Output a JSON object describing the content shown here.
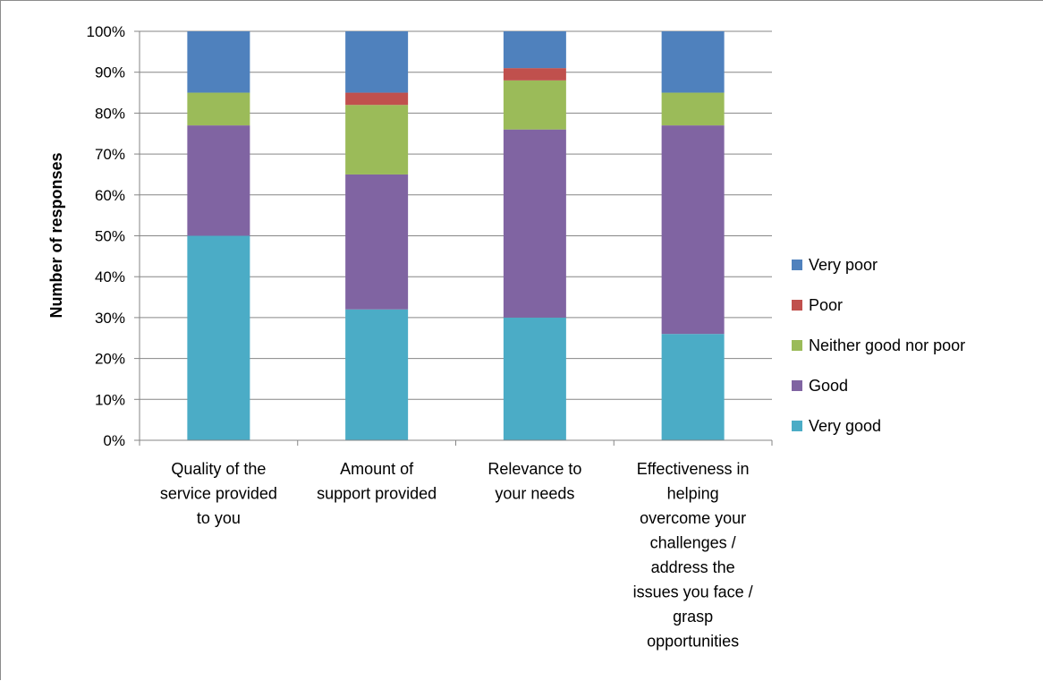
{
  "chart_data": {
    "type": "bar",
    "stacked": true,
    "percent_stacked": true,
    "title": "",
    "xlabel": "",
    "ylabel": "Number of responses",
    "ylim": [
      0,
      100
    ],
    "y_ticks": [
      "0%",
      "10%",
      "20%",
      "30%",
      "40%",
      "50%",
      "60%",
      "70%",
      "80%",
      "90%",
      "100%"
    ],
    "grid": true,
    "legend_position": "right",
    "categories": [
      [
        "Quality of the",
        "service provided",
        "to you"
      ],
      [
        "Amount of",
        "support provided"
      ],
      [
        "Relevance to",
        "your needs"
      ],
      [
        "Effectiveness in",
        "helping",
        "overcome your",
        "challenges /",
        "address the",
        "issues you face /",
        "grasp",
        "opportunities"
      ]
    ],
    "series": [
      {
        "name": "Very good",
        "color": "#4BACC6",
        "values": [
          50,
          32,
          30,
          26
        ]
      },
      {
        "name": "Good",
        "color": "#8064A2",
        "values": [
          27,
          33,
          46,
          51
        ]
      },
      {
        "name": "Neither good nor poor",
        "color": "#9BBB59",
        "values": [
          8,
          17,
          12,
          8
        ]
      },
      {
        "name": "Poor",
        "color": "#C0504D",
        "values": [
          0,
          3,
          3,
          0
        ]
      },
      {
        "name": "Very poor",
        "color": "#4F81BD",
        "values": [
          15,
          15,
          9,
          15
        ]
      }
    ]
  }
}
